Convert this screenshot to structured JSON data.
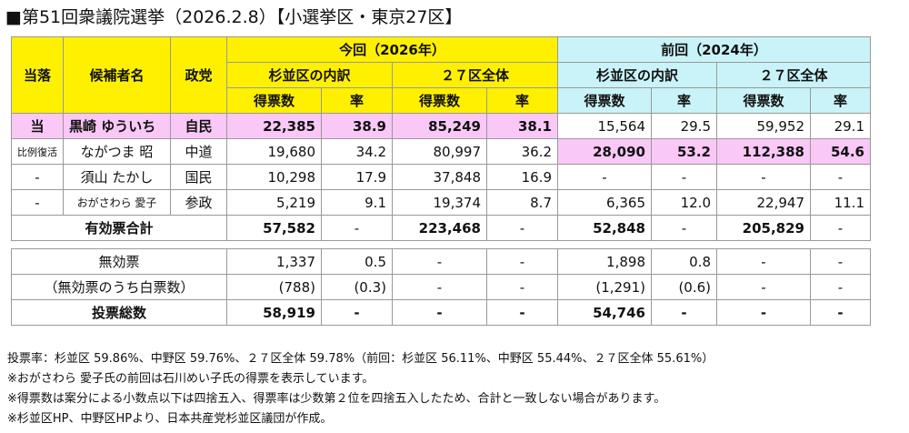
{
  "title": "■第51回衆議院選挙（2026.2.8）【小選挙区・東京27区】",
  "header": {
    "result": "当落",
    "name": "候補者名",
    "party": "政党",
    "current": "今回（2026年）",
    "previous": "前回（2024年）",
    "suginami": "杉並区の内訳",
    "district": "２７区全体",
    "votes": "得票数",
    "rate": "率"
  },
  "candidates": [
    {
      "result": "当",
      "name": "黒崎 ゆういち",
      "party": "自民",
      "cur_sug_votes": "22,385",
      "cur_sug_rate": "38.9",
      "cur_all_votes": "85,249",
      "cur_all_rate": "38.1",
      "prev_sug_votes": "15,564",
      "prev_sug_rate": "29.5",
      "prev_all_votes": "59,952",
      "prev_all_rate": "29.1"
    },
    {
      "result": "比例復活",
      "name": "ながつま 昭",
      "party": "中道",
      "cur_sug_votes": "19,680",
      "cur_sug_rate": "34.2",
      "cur_all_votes": "80,997",
      "cur_all_rate": "36.2",
      "prev_sug_votes": "28,090",
      "prev_sug_rate": "53.2",
      "prev_all_votes": "112,388",
      "prev_all_rate": "54.6"
    },
    {
      "result": "-",
      "name": "須山 たかし",
      "party": "国民",
      "cur_sug_votes": "10,298",
      "cur_sug_rate": "17.9",
      "cur_all_votes": "37,848",
      "cur_all_rate": "16.9",
      "prev_sug_votes": "-",
      "prev_sug_rate": "-",
      "prev_all_votes": "-",
      "prev_all_rate": "-"
    },
    {
      "result": "-",
      "name": "おがさわら 愛子",
      "party": "参政",
      "cur_sug_votes": "5,219",
      "cur_sug_rate": "9.1",
      "cur_all_votes": "19,374",
      "cur_all_rate": "8.7",
      "prev_sug_votes": "6,365",
      "prev_sug_rate": "12.0",
      "prev_all_votes": "22,947",
      "prev_all_rate": "11.1"
    }
  ],
  "valid_total": {
    "label": "有効票合計",
    "cur_sug_votes": "57,582",
    "cur_sug_rate": "-",
    "cur_all_votes": "223,468",
    "cur_all_rate": "-",
    "prev_sug_votes": "52,848",
    "prev_sug_rate": "-",
    "prev_all_votes": "205,829",
    "prev_all_rate": "-"
  },
  "invalid": {
    "label": "無効票",
    "cur_sug_votes": "1,337",
    "cur_sug_rate": "0.5",
    "cur_all_votes": "-",
    "cur_all_rate": "-",
    "prev_sug_votes": "1,898",
    "prev_sug_rate": "0.8",
    "prev_all_votes": "-",
    "prev_all_rate": "-"
  },
  "blank": {
    "label": "（無効票のうち白票数）",
    "cur_sug_votes": "(788)",
    "cur_sug_rate": "(0.3)",
    "cur_all_votes": "-",
    "cur_all_rate": "-",
    "prev_sug_votes": "(1,291)",
    "prev_sug_rate": "(0.6)",
    "prev_all_votes": "-",
    "prev_all_rate": "-"
  },
  "total": {
    "label": "投票総数",
    "cur_sug_votes": "58,919",
    "cur_sug_rate": "-",
    "cur_all_votes": "-",
    "cur_all_rate": "-",
    "prev_sug_votes": "54,746",
    "prev_sug_rate": "-",
    "prev_all_votes": "-",
    "prev_all_rate": "-"
  },
  "notes": [
    "投票率：杉並区 59.86%、中野区 59.76%、２７区全体 59.78%（前回：杉並区 56.11%、中野区 55.44%、２７区全体 55.61%）",
    "※おがさわら 愛子氏の前回は石川めい子氏の得票を表示しています。",
    "※得票数は案分による小数点以下は四捨五入、得票率は少数第２位を四捨五入したため、合計と一致しない場合があります。",
    "※杉並区HP、中野区HPより、日本共産党杉並区議団が作成。"
  ],
  "colors": {
    "current_header": "#fff000",
    "previous_header": "#c9f3f8",
    "highlight": "#f9c8f6"
  }
}
